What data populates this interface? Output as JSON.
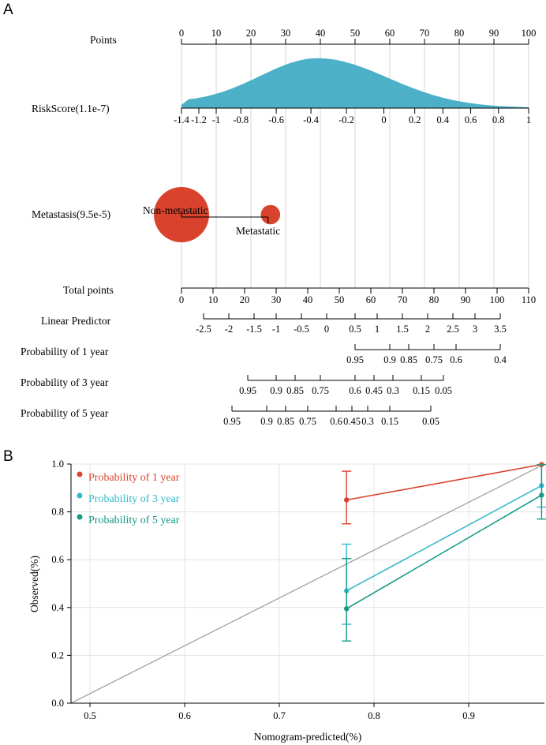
{
  "panel_a": {
    "label": "A",
    "rows": {
      "points": "Points",
      "riskscore": "RiskScore(1.1e-7)",
      "metastasis": "Metastasis(9.5e-5)",
      "total_points": "Total points",
      "linear_predictor": "Linear Predictor",
      "prob1": "Probability of 1 year",
      "prob3": "Probability of 3 year",
      "prob5": "Probability of 5 year"
    },
    "metastasis_levels": {
      "non_metastatic": "Non-metastatic",
      "metastatic": "Metastatic"
    },
    "colors": {
      "density": "#4bb0c8",
      "bubble": "#d9432d"
    }
  },
  "panel_b": {
    "label": "B",
    "xlabel": "Nomogram-predicted(%)",
    "ylabel": "Observed(%)",
    "legend": [
      {
        "label": "Probability of 1 year",
        "color": "#d9432d"
      },
      {
        "label": "Probability of 3 year",
        "color": "#35b8c8"
      },
      {
        "label": "Probability of 5 year",
        "color": "#149a86"
      }
    ]
  },
  "chart_data": [
    {
      "type": "nomogram",
      "title": "A",
      "axes": [
        {
          "name": "Points",
          "range": [
            0,
            100
          ],
          "ticks": [
            "0",
            "10",
            "20",
            "30",
            "40",
            "50",
            "60",
            "70",
            "80",
            "90",
            "100"
          ],
          "tick_values": [
            0,
            10,
            20,
            30,
            40,
            50,
            60,
            70,
            80,
            90,
            100
          ]
        },
        {
          "name": "RiskScore(1.1e-7)",
          "ticks": [
            "-1.4",
            "-1.2",
            "-1",
            "-0.8",
            "-0.6",
            "-0.4",
            "-0.2",
            "0",
            "0.2",
            "0.4",
            "0.6",
            "0.8",
            "1"
          ],
          "points": [
            0,
            5,
            10,
            17.1,
            27.3,
            37.3,
            47.5,
            58.3,
            67.2,
            75.3,
            83.3,
            91.3,
            100
          ],
          "density_peak_points": 39.5
        },
        {
          "name": "Metastasis(9.5e-5)",
          "levels": [
            "Non-metastatic",
            "Metastatic"
          ],
          "points": [
            0,
            24.5
          ],
          "relative_size": [
            1.0,
            0.45
          ]
        },
        {
          "name": "Total points",
          "range": [
            0,
            110
          ],
          "ticks": [
            "0",
            "10",
            "20",
            "30",
            "40",
            "50",
            "60",
            "70",
            "80",
            "90",
            "100",
            "110"
          ],
          "tick_values": [
            0,
            10,
            20,
            30,
            40,
            50,
            60,
            70,
            80,
            90,
            100,
            110
          ]
        },
        {
          "name": "Linear Predictor",
          "ticks": [
            "-2.5",
            "-2",
            "-1.5",
            "-1",
            "-0.5",
            "0",
            "0.5",
            "1",
            "1.5",
            "2",
            "2.5",
            "3",
            "3.5"
          ],
          "total_points": [
            7,
            15,
            23,
            30,
            38,
            46,
            55,
            62,
            70,
            78,
            86,
            93,
            101
          ]
        },
        {
          "name": "Probability of 1 year",
          "ticks": [
            "0.95",
            "0.9",
            "0.85",
            "0.75",
            "0.6",
            "0.4"
          ],
          "total_points": [
            55,
            66,
            72,
            80,
            87,
            101
          ]
        },
        {
          "name": "Probability of 3 year",
          "ticks": [
            "0.95",
            "0.9",
            "0.85",
            "0.75",
            "0.6",
            "0.45",
            "0.3",
            "0.15",
            "0.05"
          ],
          "total_points": [
            21,
            30,
            36,
            44,
            55,
            61,
            67,
            76,
            83
          ]
        },
        {
          "name": "Probability of 5 year",
          "ticks": [
            "0.95",
            "0.9",
            "0.85",
            "0.75",
            "0.6",
            "0.45",
            "0.3",
            "0.15",
            "0.05"
          ],
          "total_points": [
            16,
            27,
            33,
            40,
            49,
            54,
            59,
            66,
            79
          ]
        }
      ]
    },
    {
      "type": "line",
      "title": "B",
      "xlabel": "Nomogram-predicted(%)",
      "ylabel": "Observed(%)",
      "xlim": [
        0.48,
        0.98
      ],
      "ylim": [
        0.0,
        1.0
      ],
      "xticks": [
        "0.5",
        "0.6",
        "0.7",
        "0.8",
        "0.9"
      ],
      "yticks": [
        "0.0",
        "0.2",
        "0.4",
        "0.6",
        "0.8",
        "1.0"
      ],
      "reference_line": {
        "from": [
          0.48,
          0.0
        ],
        "to": [
          0.98,
          1.0
        ],
        "color": "#9a9a9a"
      },
      "series": [
        {
          "name": "Probability of 1 year",
          "color": "#d9432d",
          "x": [
            0.771,
            0.977
          ],
          "y": [
            0.85,
            0.998
          ],
          "err_low": [
            0.75,
            0.998
          ],
          "err_high": [
            0.97,
            0.998
          ]
        },
        {
          "name": "Probability of 3 year",
          "color": "#35b8c8",
          "x": [
            0.771,
            0.977
          ],
          "y": [
            0.47,
            0.91
          ],
          "err_low": [
            0.33,
            0.82
          ],
          "err_high": [
            0.665,
            0.998
          ]
        },
        {
          "name": "Probability of 5 year",
          "color": "#149a86",
          "x": [
            0.771,
            0.977
          ],
          "y": [
            0.395,
            0.87
          ],
          "err_low": [
            0.26,
            0.77
          ],
          "err_high": [
            0.605,
            0.998
          ]
        }
      ]
    }
  ]
}
